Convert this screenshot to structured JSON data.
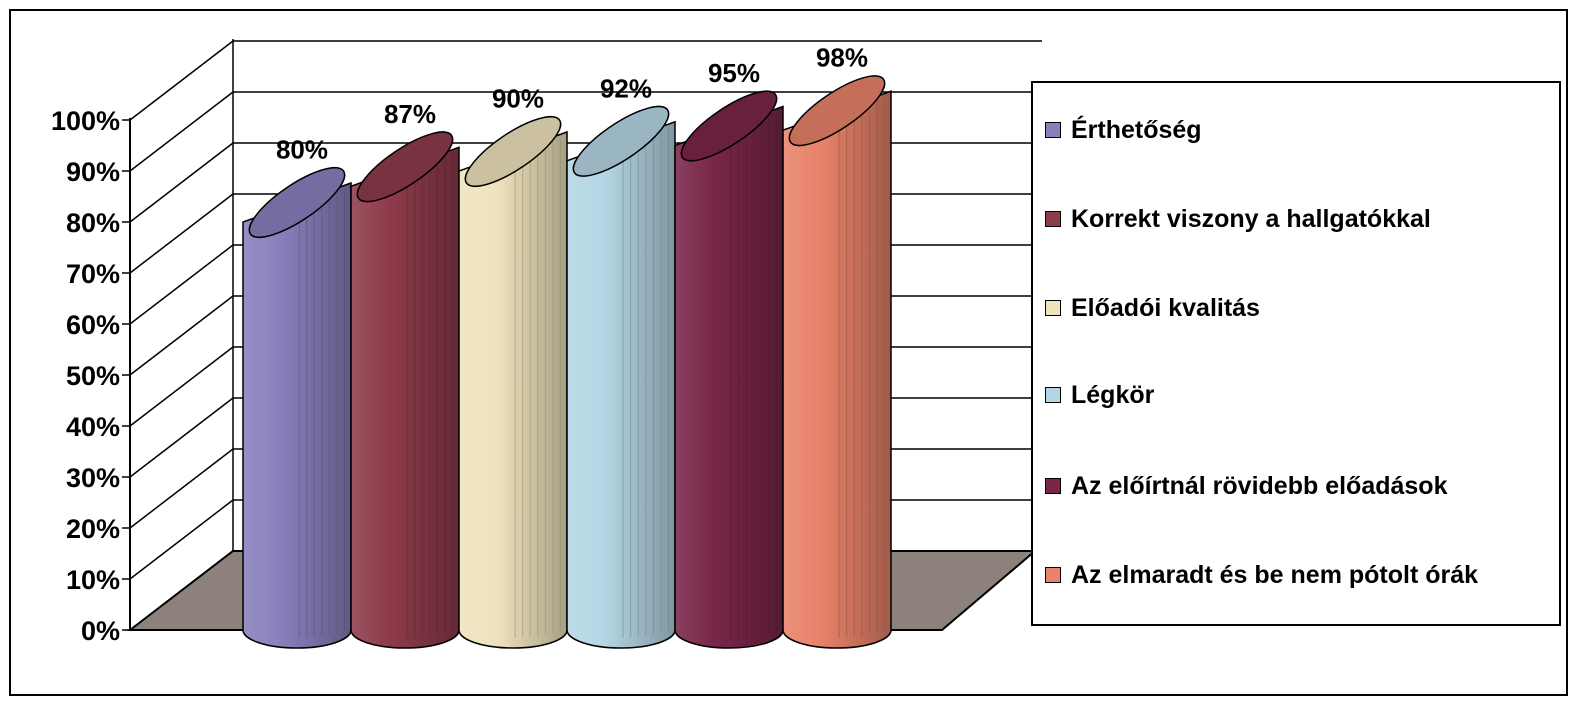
{
  "chart_data": {
    "type": "bar",
    "style": "3d-cylinder",
    "y_ticks": [
      "0%",
      "10%",
      "20%",
      "30%",
      "40%",
      "50%",
      "60%",
      "70%",
      "80%",
      "90%",
      "100%"
    ],
    "ylim": [
      0,
      100
    ],
    "grid": true,
    "legend_position": "right",
    "series": [
      {
        "name": "Érthetőség",
        "value": 80,
        "label": "80%",
        "color": "#8880bd"
      },
      {
        "name": "Korrekt viszony a hallgatókkal",
        "value": 87,
        "label": "87%",
        "color": "#8e3b4a"
      },
      {
        "name": "Előadói kvalitás",
        "value": 90,
        "label": "90%",
        "color": "#efe3bc"
      },
      {
        "name": "Légkör",
        "value": 92,
        "label": "92%",
        "color": "#b4d6e4"
      },
      {
        "name": "Az előírtnál rövidebb előadások",
        "value": 95,
        "label": "95%",
        "color": "#7a2649"
      },
      {
        "name": "Az elmaradt és be nem pótolt órák",
        "value": 98,
        "label": "98%",
        "color": "#e8826a"
      }
    ],
    "floor_color": "#8c827b"
  }
}
